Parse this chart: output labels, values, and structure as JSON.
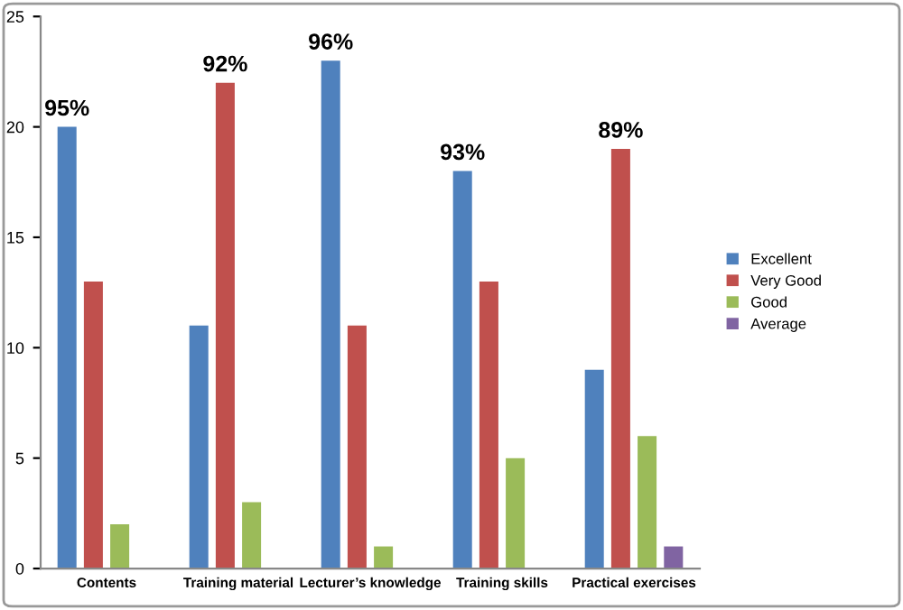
{
  "chart_data": {
    "type": "bar",
    "categories": [
      "Contents",
      "Training material",
      "Lecturer’s knowledge",
      "Training skills",
      "Practical exercises"
    ],
    "series": [
      {
        "name": "Excellent",
        "color": "#4f81bd",
        "values": [
          20,
          11,
          23,
          18,
          9
        ]
      },
      {
        "name": "Very Good",
        "color": "#c0504d",
        "values": [
          13,
          22,
          11,
          13,
          19
        ]
      },
      {
        "name": "Good",
        "color": "#9bbb59",
        "values": [
          2,
          3,
          1,
          5,
          6
        ]
      },
      {
        "name": "Average",
        "color": "#8064a2",
        "values": [
          0,
          0,
          0,
          0,
          1
        ]
      }
    ],
    "ylim": [
      0,
      25
    ],
    "yticks": [
      0,
      5,
      10,
      15,
      20,
      25
    ],
    "annotations": [
      "95%",
      "92%",
      "96%",
      "93%",
      "89%"
    ],
    "grid": false,
    "legend": "right"
  }
}
